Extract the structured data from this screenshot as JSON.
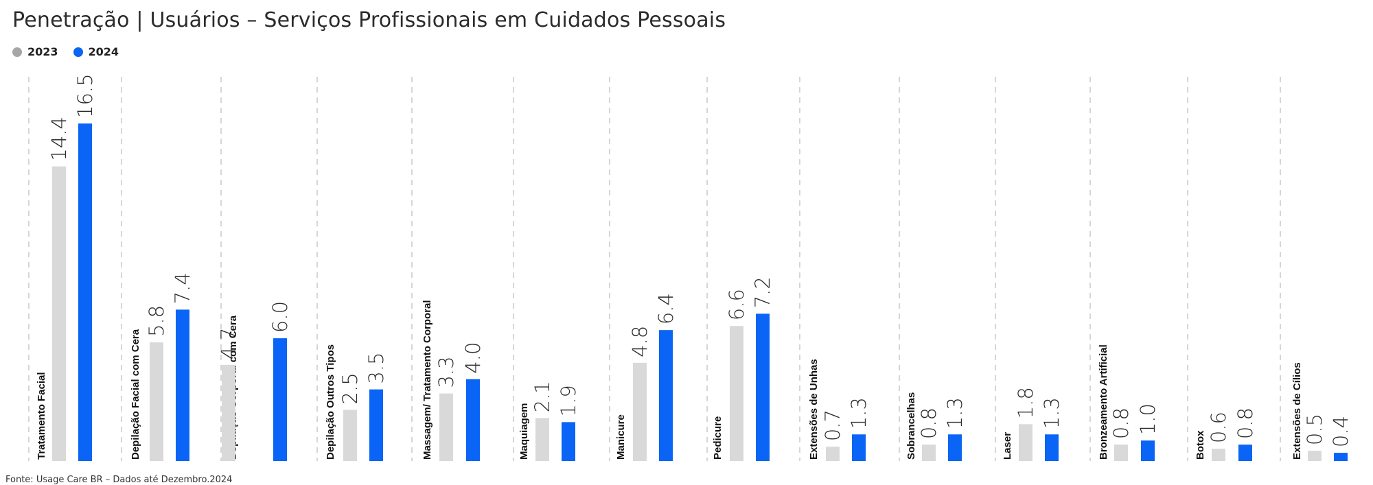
{
  "title": "Penetração | Usuários – Serviços Profissionais em Cuidados Pessoais",
  "source": "Fonte: Usage Care BR – Dados até Dezembro.2024",
  "legend": [
    {
      "label": "2023",
      "color": "#a6a6a6"
    },
    {
      "label": "2024",
      "color": "#0a64f5"
    }
  ],
  "colors": {
    "bar_2023": "#d9d9d9",
    "bar_2024": "#0a64f5",
    "divider": "#c8c8c8"
  },
  "chart_data": {
    "type": "bar",
    "title": "Penetração | Usuários – Serviços Profissionais em Cuidados Pessoais",
    "categories": [
      "Tratamento Facial",
      "Depilação Facial com Cera",
      "Depilação Corporal com Cera",
      "Depilação Outros Tipos",
      "Massagem/ Tratamento Corporal",
      "Maquiagem",
      "Manicure",
      "Pedicure",
      "Extensões de Unhas",
      "Sobrancelhas",
      "Laser",
      "Bronzeamento Artificial",
      "Botox",
      "Extensões de Cílios"
    ],
    "series": [
      {
        "name": "2023",
        "values": [
          14.4,
          5.8,
          4.7,
          2.5,
          3.3,
          2.1,
          4.8,
          6.6,
          0.7,
          0.8,
          1.8,
          0.8,
          0.6,
          0.5
        ]
      },
      {
        "name": "2024",
        "values": [
          16.5,
          7.4,
          6.0,
          3.5,
          4.0,
          1.9,
          6.4,
          7.2,
          1.3,
          1.3,
          1.3,
          1.0,
          0.8,
          0.4
        ]
      }
    ],
    "value_labels": {
      "2023": [
        "14.4",
        "5.8",
        "4.7",
        "2.5",
        "3.3",
        "2.1",
        "4.8",
        "6.6",
        "0.7",
        "0.8",
        "1.8",
        "0.8",
        "0.6",
        "0.5"
      ],
      "2024": [
        "16.5",
        "7.4",
        "6.0",
        "3.5",
        "4.0",
        "1.9",
        "6.4",
        "7.2",
        "1.3",
        "1.3",
        "1.3",
        "1.0",
        "0.8",
        "0.4"
      ]
    },
    "ylim": [
      0,
      16.5
    ],
    "grid": false,
    "legend_position": "top-left"
  }
}
